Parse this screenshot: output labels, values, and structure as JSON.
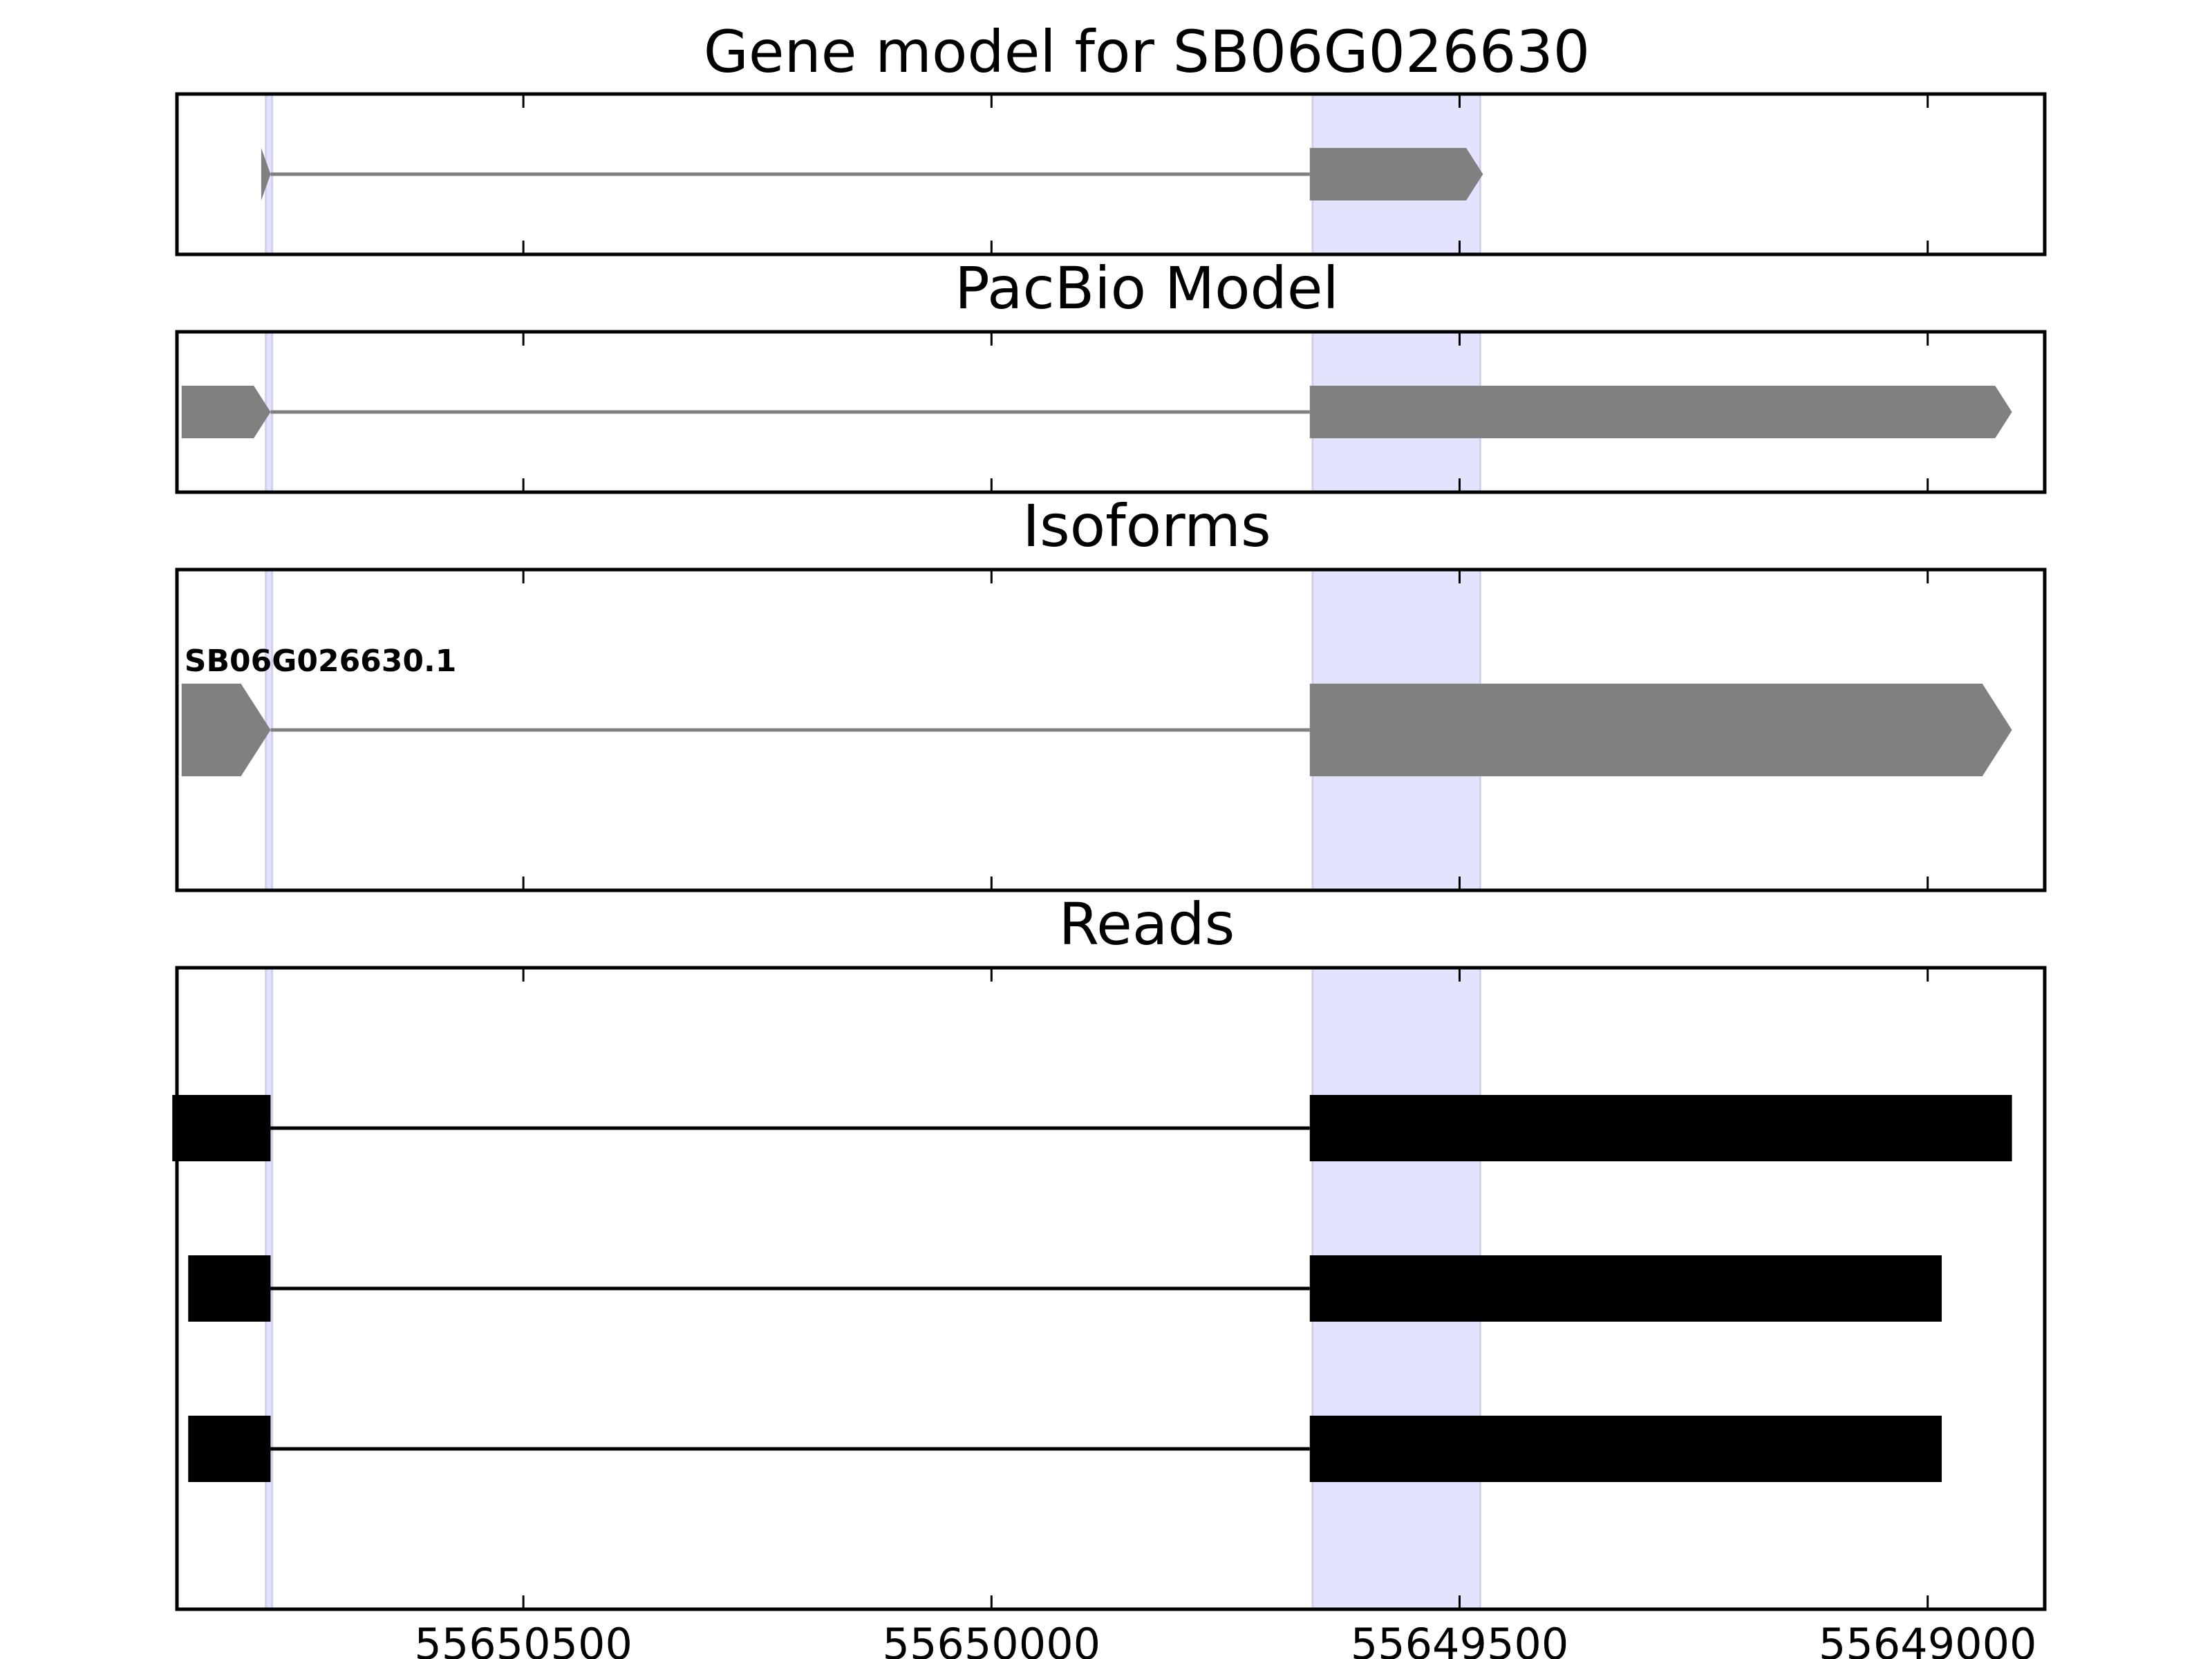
{
  "chart_data": {
    "type": "gene-model",
    "x_axis": {
      "direction": "reversed",
      "range": [
        55650870,
        55648875
      ],
      "ticks": [
        55650500,
        55650000,
        55649500,
        55649000
      ],
      "tick_labels": [
        "55650500",
        "55650000",
        "55649500",
        "55649000"
      ]
    },
    "highlight_regions": [
      {
        "start": 55650775,
        "end": 55650769
      },
      {
        "start": 55649657,
        "end": 55649478
      }
    ],
    "colors": {
      "highlight": "#e3e3ff",
      "highlight_edge": "#d0d0ef",
      "model": "#808080",
      "read": "#000000",
      "axes": "#000000"
    },
    "panels": [
      {
        "title": "Gene model for SB06G026630",
        "kind": "model",
        "strand": "-",
        "rows": [
          {
            "label": "",
            "exons": [
              [
                55650780,
                55650770
              ],
              [
                55649660,
                55649475
              ]
            ]
          }
        ]
      },
      {
        "title": "PacBio Model",
        "kind": "model",
        "strand": "-",
        "rows": [
          {
            "label": "",
            "exons": [
              [
                55650865,
                55650770
              ],
              [
                55649660,
                55648910
              ]
            ]
          }
        ]
      },
      {
        "title": "Isoforms",
        "kind": "model",
        "strand": "-",
        "rows": [
          {
            "label": "SB06G026630.1",
            "exons": [
              [
                55650865,
                55650770
              ],
              [
                55649660,
                55648910
              ]
            ]
          }
        ]
      },
      {
        "title": "Reads",
        "kind": "reads",
        "rows": [
          {
            "label": "",
            "exons": [
              [
                55650875,
                55650770
              ],
              [
                55649660,
                55648910
              ]
            ]
          },
          {
            "label": "",
            "exons": [
              [
                55650858,
                55650770
              ],
              [
                55649660,
                55648985
              ]
            ]
          },
          {
            "label": "",
            "exons": [
              [
                55650858,
                55650770
              ],
              [
                55649660,
                55648985
              ]
            ]
          }
        ]
      }
    ]
  }
}
